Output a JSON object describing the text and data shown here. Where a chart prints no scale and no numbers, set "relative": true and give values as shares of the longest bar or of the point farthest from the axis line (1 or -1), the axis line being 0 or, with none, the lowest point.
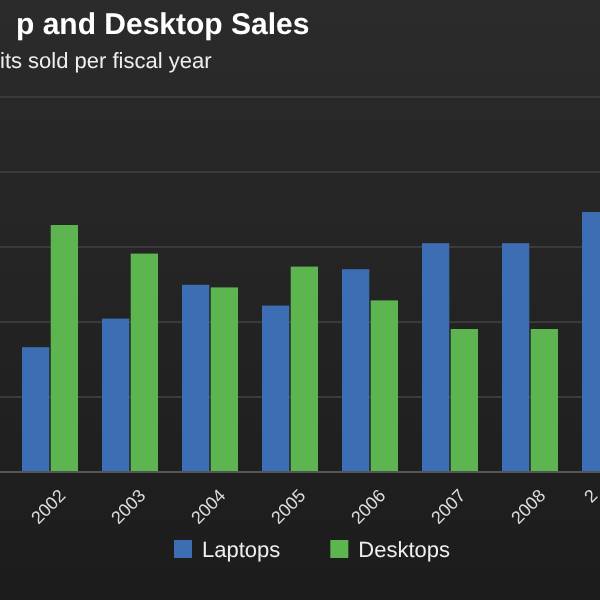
{
  "chart_data": {
    "type": "bar",
    "title": "p and Desktop Sales",
    "subtitle": "its sold per fiscal year",
    "categories": [
      "2002",
      "2003",
      "2004",
      "2005",
      "2006",
      "2007",
      "2008",
      "2"
    ],
    "relative": true,
    "grid": "y",
    "legend": "bottom",
    "series": [
      {
        "name": "Laptops",
        "color": "#3d6eb4",
        "values": [
          0.48,
          0.59,
          0.72,
          0.64,
          0.78,
          0.88,
          0.88,
          1
        ]
      },
      {
        "name": "Desktops",
        "color": "#5cb54f",
        "values": [
          0.95,
          0.84,
          0.71,
          0.79,
          0.66,
          0.55,
          0.55,
          null
        ]
      }
    ]
  }
}
